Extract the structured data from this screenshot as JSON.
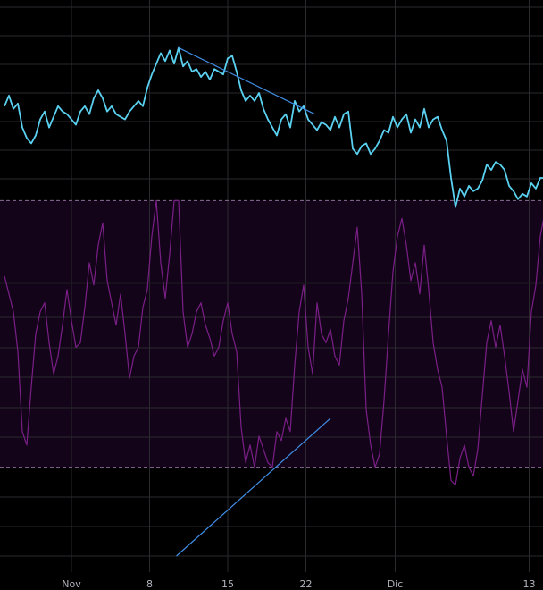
{
  "colors": {
    "background": "#000000",
    "grid": "#2a2a2e",
    "price_line": "#5ad1f0",
    "rsi_line": "#7a1f86",
    "rsi_band_fill": "#14041a",
    "rsi_band_border": "#8a6c95",
    "trendline": "#3f8fe6",
    "axis_text": "#b2b5be"
  },
  "chart_data": [
    {
      "type": "line",
      "panel": "price",
      "x_tick_labels": [
        "Nov",
        "8",
        "15",
        "22",
        "Dic",
        "13"
      ],
      "x_tick_positions": [
        3.0,
        10.0,
        17.0,
        24.0,
        32.0,
        44.0
      ],
      "xlim": [
        -3,
        45.6
      ],
      "ylim": [
        0,
        100
      ],
      "grid": true,
      "series": [
        {
          "values": [
            [
              -3.0,
              60
            ],
            [
              -2.6,
              64
            ],
            [
              -2.2,
              59
            ],
            [
              -1.8,
              61
            ],
            [
              -1.4,
              52
            ],
            [
              -1.0,
              48
            ],
            [
              -0.6,
              46
            ],
            [
              -0.2,
              49
            ],
            [
              0.2,
              55
            ],
            [
              0.6,
              58
            ],
            [
              1.0,
              52
            ],
            [
              1.4,
              56
            ],
            [
              1.8,
              60
            ],
            [
              2.2,
              58
            ],
            [
              2.6,
              57
            ],
            [
              3.0,
              55
            ],
            [
              3.4,
              53
            ],
            [
              3.8,
              58
            ],
            [
              4.2,
              60
            ],
            [
              4.6,
              57
            ],
            [
              5.0,
              63
            ],
            [
              5.4,
              66
            ],
            [
              5.8,
              63
            ],
            [
              6.2,
              58
            ],
            [
              6.6,
              60
            ],
            [
              7.0,
              57
            ],
            [
              7.4,
              56
            ],
            [
              7.8,
              55
            ],
            [
              8.2,
              58
            ],
            [
              8.6,
              60
            ],
            [
              9.0,
              62
            ],
            [
              9.4,
              60
            ],
            [
              9.8,
              67
            ],
            [
              10.2,
              72
            ],
            [
              10.6,
              76
            ],
            [
              11.0,
              80
            ],
            [
              11.4,
              77
            ],
            [
              11.8,
              81
            ],
            [
              12.2,
              76
            ],
            [
              12.6,
              82
            ],
            [
              13.0,
              75
            ],
            [
              13.4,
              77
            ],
            [
              13.8,
              73
            ],
            [
              14.2,
              74
            ],
            [
              14.6,
              71
            ],
            [
              15.0,
              73
            ],
            [
              15.4,
              70
            ],
            [
              15.8,
              74
            ],
            [
              16.2,
              73
            ],
            [
              16.6,
              72
            ],
            [
              17.0,
              78
            ],
            [
              17.4,
              79
            ],
            [
              17.8,
              73
            ],
            [
              18.2,
              66
            ],
            [
              18.6,
              62
            ],
            [
              19.0,
              64
            ],
            [
              19.4,
              62
            ],
            [
              19.8,
              65
            ],
            [
              20.2,
              59
            ],
            [
              20.6,
              55
            ],
            [
              21.0,
              52
            ],
            [
              21.4,
              49
            ],
            [
              21.8,
              55
            ],
            [
              22.2,
              57
            ],
            [
              22.6,
              52
            ],
            [
              23.0,
              62
            ],
            [
              23.4,
              58
            ],
            [
              23.8,
              60
            ],
            [
              24.2,
              55
            ],
            [
              24.6,
              53
            ],
            [
              25.0,
              51
            ],
            [
              25.4,
              54
            ],
            [
              25.8,
              53
            ],
            [
              26.2,
              51
            ],
            [
              26.6,
              56
            ],
            [
              27.0,
              52
            ],
            [
              27.4,
              57
            ],
            [
              27.8,
              58
            ],
            [
              28.2,
              44
            ],
            [
              28.6,
              42
            ],
            [
              29.0,
              45
            ],
            [
              29.4,
              46
            ],
            [
              29.8,
              42
            ],
            [
              30.2,
              44
            ],
            [
              30.6,
              47
            ],
            [
              31.0,
              51
            ],
            [
              31.4,
              50
            ],
            [
              31.8,
              56
            ],
            [
              32.2,
              52
            ],
            [
              32.6,
              55
            ],
            [
              33.0,
              57
            ],
            [
              33.4,
              50
            ],
            [
              33.8,
              55
            ],
            [
              34.2,
              52
            ],
            [
              34.6,
              59
            ],
            [
              35.0,
              52
            ],
            [
              35.4,
              55
            ],
            [
              35.8,
              56
            ],
            [
              36.2,
              51
            ],
            [
              36.6,
              47
            ],
            [
              37.0,
              33
            ],
            [
              37.4,
              22
            ],
            [
              37.8,
              29
            ],
            [
              38.2,
              26
            ],
            [
              38.6,
              30
            ],
            [
              39.0,
              28
            ],
            [
              39.4,
              29
            ],
            [
              39.8,
              32
            ],
            [
              40.2,
              38
            ],
            [
              40.6,
              36
            ],
            [
              41.0,
              39
            ],
            [
              41.4,
              38
            ],
            [
              41.8,
              36
            ],
            [
              42.2,
              30
            ],
            [
              42.6,
              28
            ],
            [
              43.0,
              25
            ],
            [
              43.4,
              27
            ],
            [
              43.8,
              26
            ],
            [
              44.2,
              31
            ],
            [
              44.6,
              29
            ],
            [
              45.0,
              33
            ],
            [
              45.6,
              33
            ]
          ]
        }
      ],
      "trendline": [
        [
          12.6,
          82
        ],
        [
          24.8,
          57
        ]
      ]
    },
    {
      "type": "line",
      "panel": "oscillator",
      "xlim": [
        -3,
        45.6
      ],
      "ylim": [
        0,
        100
      ],
      "band": [
        20,
        80
      ],
      "grid": true,
      "series": [
        {
          "values": [
            [
              -3.0,
              63
            ],
            [
              -2.6,
              59
            ],
            [
              -2.2,
              55
            ],
            [
              -1.8,
              46
            ],
            [
              -1.4,
              28
            ],
            [
              -1.0,
              25
            ],
            [
              -0.6,
              38
            ],
            [
              -0.2,
              50
            ],
            [
              0.2,
              55
            ],
            [
              0.6,
              57
            ],
            [
              1.0,
              48
            ],
            [
              1.4,
              41
            ],
            [
              1.8,
              45
            ],
            [
              2.2,
              52
            ],
            [
              2.6,
              60
            ],
            [
              3.0,
              53
            ],
            [
              3.4,
              47
            ],
            [
              3.8,
              48
            ],
            [
              4.2,
              56
            ],
            [
              4.6,
              66
            ],
            [
              5.0,
              61
            ],
            [
              5.4,
              70
            ],
            [
              5.8,
              75
            ],
            [
              6.2,
              62
            ],
            [
              6.6,
              57
            ],
            [
              7.0,
              52
            ],
            [
              7.4,
              59
            ],
            [
              7.8,
              50
            ],
            [
              8.2,
              40
            ],
            [
              8.6,
              45
            ],
            [
              9.0,
              47
            ],
            [
              9.4,
              56
            ],
            [
              9.8,
              60
            ],
            [
              10.2,
              72
            ],
            [
              10.6,
              80
            ],
            [
              11.0,
              66
            ],
            [
              11.4,
              58
            ],
            [
              11.8,
              68
            ],
            [
              12.2,
              80
            ],
            [
              12.6,
              80
            ],
            [
              13.0,
              55
            ],
            [
              13.4,
              47
            ],
            [
              13.8,
              50
            ],
            [
              14.2,
              55
            ],
            [
              14.6,
              57
            ],
            [
              15.0,
              52
            ],
            [
              15.4,
              49
            ],
            [
              15.8,
              45
            ],
            [
              16.2,
              47
            ],
            [
              16.6,
              53
            ],
            [
              17.0,
              57
            ],
            [
              17.4,
              50
            ],
            [
              17.8,
              46
            ],
            [
              18.2,
              29
            ],
            [
              18.6,
              21
            ],
            [
              19.0,
              25
            ],
            [
              19.4,
              20
            ],
            [
              19.8,
              27
            ],
            [
              20.2,
              24
            ],
            [
              20.6,
              21
            ],
            [
              21.0,
              20
            ],
            [
              21.4,
              28
            ],
            [
              21.8,
              26
            ],
            [
              22.2,
              31
            ],
            [
              22.6,
              28
            ],
            [
              23.0,
              43
            ],
            [
              23.4,
              55
            ],
            [
              23.8,
              61
            ],
            [
              24.2,
              47
            ],
            [
              24.6,
              41
            ],
            [
              25.0,
              57
            ],
            [
              25.4,
              50
            ],
            [
              25.8,
              48
            ],
            [
              26.2,
              51
            ],
            [
              26.6,
              45
            ],
            [
              27.0,
              43
            ],
            [
              27.4,
              53
            ],
            [
              27.8,
              58
            ],
            [
              28.2,
              66
            ],
            [
              28.6,
              74
            ],
            [
              29.0,
              59
            ],
            [
              29.4,
              33
            ],
            [
              29.8,
              25
            ],
            [
              30.2,
              20
            ],
            [
              30.6,
              23
            ],
            [
              31.0,
              35
            ],
            [
              31.4,
              50
            ],
            [
              31.8,
              64
            ],
            [
              32.2,
              72
            ],
            [
              32.6,
              76
            ],
            [
              33.0,
              70
            ],
            [
              33.4,
              62
            ],
            [
              33.8,
              66
            ],
            [
              34.2,
              59
            ],
            [
              34.6,
              70
            ],
            [
              35.0,
              60
            ],
            [
              35.4,
              48
            ],
            [
              35.8,
              42
            ],
            [
              36.2,
              38
            ],
            [
              36.6,
              27
            ],
            [
              37.0,
              17
            ],
            [
              37.4,
              16
            ],
            [
              37.8,
              22
            ],
            [
              38.2,
              25
            ],
            [
              38.6,
              20
            ],
            [
              39.0,
              18
            ],
            [
              39.4,
              24
            ],
            [
              39.8,
              36
            ],
            [
              40.2,
              48
            ],
            [
              40.6,
              53
            ],
            [
              41.0,
              47
            ],
            [
              41.4,
              52
            ],
            [
              41.8,
              45
            ],
            [
              42.2,
              37
            ],
            [
              42.6,
              28
            ],
            [
              43.0,
              35
            ],
            [
              43.4,
              42
            ],
            [
              43.8,
              38
            ],
            [
              44.2,
              55
            ],
            [
              44.6,
              61
            ],
            [
              45.0,
              72
            ],
            [
              45.6,
              80
            ]
          ]
        }
      ],
      "trendline": [
        [
          12.4,
          0
        ],
        [
          26.2,
          31
        ]
      ]
    }
  ]
}
